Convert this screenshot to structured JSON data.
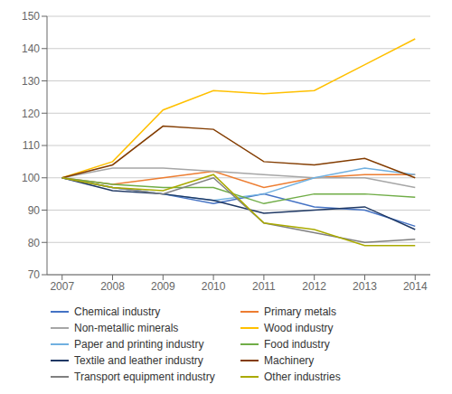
{
  "chart_data": {
    "type": "line",
    "x": [
      2007,
      2008,
      2009,
      2010,
      2011,
      2012,
      2013,
      2014
    ],
    "xlim": [
      2006.7,
      2014.3
    ],
    "xticks": [
      2007,
      2008,
      2009,
      2010,
      2011,
      2012,
      2013,
      2014
    ],
    "ylim": [
      70,
      150
    ],
    "yticks": [
      70,
      80,
      90,
      100,
      110,
      120,
      130,
      140,
      150
    ],
    "grid": true,
    "legend": "bottom",
    "series": [
      {
        "name": "Chemical industry",
        "color": "#4472C4",
        "values": [
          100,
          97,
          95,
          92,
          95,
          91,
          90,
          85
        ]
      },
      {
        "name": "Primary metals",
        "color": "#ED7D31",
        "values": [
          100,
          98,
          100,
          102,
          97,
          100,
          101,
          101
        ]
      },
      {
        "name": "Non-metallic minerals",
        "color": "#A6A6A6",
        "values": [
          100,
          103,
          103,
          102,
          101,
          100,
          100,
          97
        ]
      },
      {
        "name": "Wood industry",
        "color": "#FFC000",
        "values": [
          100,
          105,
          121,
          127,
          126,
          127,
          135,
          143
        ]
      },
      {
        "name": "Paper and printing industry",
        "color": "#70B0E0",
        "values": [
          100,
          97,
          95,
          93,
          95,
          100,
          103,
          101
        ]
      },
      {
        "name": "Food industry",
        "color": "#70AD47",
        "values": [
          100,
          98,
          97,
          97,
          92,
          95,
          95,
          94
        ]
      },
      {
        "name": "Textile and leather industry",
        "color": "#1F3864",
        "values": [
          100,
          96,
          95,
          93,
          89,
          90,
          91,
          84
        ]
      },
      {
        "name": "Machinery",
        "color": "#833C00",
        "values": [
          100,
          104,
          116,
          115,
          105,
          104,
          106,
          100
        ]
      },
      {
        "name": "Transport equipment industry",
        "color": "#808080",
        "values": [
          100,
          97,
          95,
          100,
          86,
          83,
          80,
          81
        ]
      },
      {
        "name": "Other industries",
        "color": "#AAAA00",
        "values": [
          100,
          97,
          96,
          101,
          86,
          84,
          79,
          79
        ]
      }
    ]
  }
}
